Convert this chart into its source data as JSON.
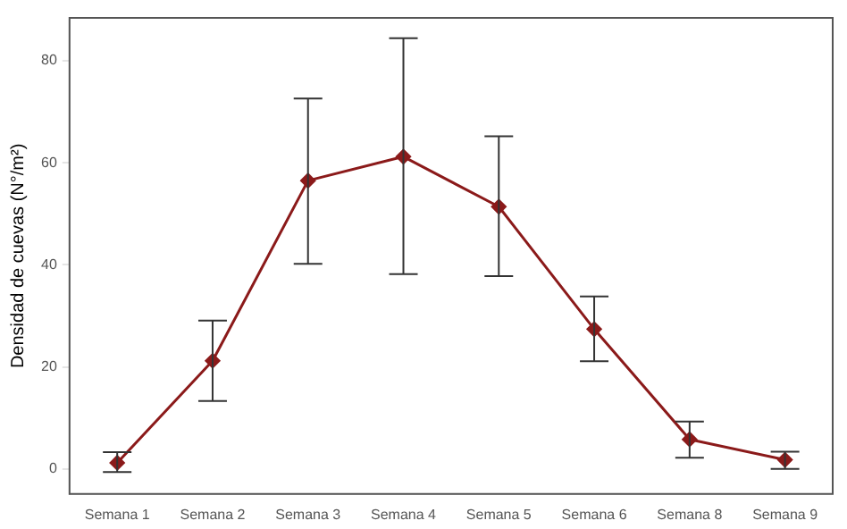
{
  "chart_data": {
    "type": "line",
    "ylabel": "Densidad de cuevas (N°/m²)",
    "categories": [
      "Semana 1",
      "Semana 2",
      "Semana 3",
      "Semana 4",
      "Semana 5",
      "Semana 6",
      "Semana 8",
      "Semana 9"
    ],
    "series": [
      {
        "color": "#8b1a1a",
        "values": [
          1.2,
          21.2,
          56.5,
          61.2,
          51.4,
          27.4,
          5.8,
          1.8
        ],
        "errors": [
          [
            -0.6,
            3.3
          ],
          [
            13.3,
            29.1
          ],
          [
            40.2,
            72.6
          ],
          [
            38.2,
            84.4
          ],
          [
            37.8,
            65.2
          ],
          [
            21.1,
            33.8
          ],
          [
            2.2,
            9.3
          ],
          [
            0,
            3.4
          ]
        ]
      }
    ],
    "ylim": [
      -4.9,
      88.4
    ],
    "yticks": [
      0,
      20,
      40,
      60,
      80
    ],
    "grid": false,
    "legend": false,
    "marker": "diamond",
    "line_style": "solid"
  }
}
